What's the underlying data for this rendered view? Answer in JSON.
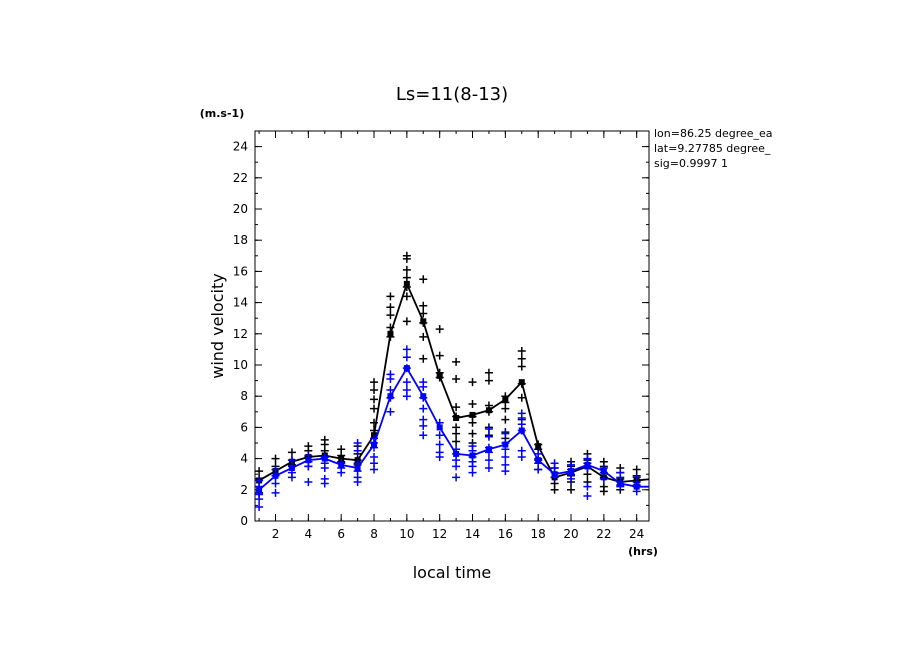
{
  "chart_data": {
    "type": "line",
    "title": "Ls=11(8-13)",
    "xlabel": "local time",
    "ylabel": "wind velocity",
    "x_unit": "(hrs)",
    "y_unit": "(m.s-1)",
    "xlim": [
      0.75,
      24.75
    ],
    "ylim": [
      0,
      25
    ],
    "xticks": [
      2,
      4,
      6,
      8,
      10,
      12,
      14,
      16,
      18,
      20,
      22,
      24
    ],
    "yticks": [
      0,
      2,
      4,
      6,
      8,
      10,
      12,
      14,
      16,
      18,
      20,
      22,
      24
    ],
    "info_lines": [
      "lon=86.25 degree_ea",
      "lat=9.27785 degree_",
      "sig=0.9997 1"
    ],
    "x": [
      1,
      2,
      3,
      4,
      5,
      6,
      7,
      8,
      9,
      10,
      11,
      12,
      13,
      14,
      15,
      16,
      17,
      18,
      19,
      20,
      21,
      22,
      23,
      24,
      25
    ],
    "series": [
      {
        "color": "#000000",
        "values": [
          2.6,
          3.2,
          3.8,
          4.1,
          4.2,
          4.0,
          3.9,
          5.5,
          12.0,
          15.2,
          12.8,
          9.3,
          6.6,
          6.8,
          7.1,
          7.8,
          8.9,
          4.8,
          2.8,
          3.1,
          3.5,
          2.8,
          2.5,
          2.6,
          2.7
        ],
        "scatter": [
          [
            3.2,
            2.7,
            2.2,
            1.8
          ],
          [
            4.0,
            3.5,
            2.9
          ],
          [
            4.4,
            3.9,
            3.6
          ],
          [
            4.8,
            4.5,
            4.1,
            3.8,
            3.5
          ],
          [
            5.2,
            4.9,
            4.5,
            4.1
          ],
          [
            4.6,
            4.2,
            3.8
          ],
          [
            4.8,
            4.3,
            3.9,
            3.6
          ],
          [
            8.9,
            8.4,
            7.8,
            7.2,
            6.3,
            5.8
          ],
          [
            14.4,
            13.7,
            13.2,
            12.4,
            11.8
          ],
          [
            17.0,
            16.8,
            16.1,
            15.6,
            15.0,
            14.4,
            12.8
          ],
          [
            15.5,
            13.8,
            13.3,
            12.7,
            11.8,
            10.4
          ],
          [
            12.3,
            10.6,
            9.5,
            9.2
          ],
          [
            10.2,
            9.1,
            7.3,
            6.7,
            6.0,
            5.6,
            5.1
          ],
          [
            8.9,
            7.5,
            6.7,
            6.3,
            5.6,
            5.0
          ],
          [
            9.5,
            9.0,
            7.4,
            7.0,
            6.0,
            5.5
          ],
          [
            8.0,
            7.6,
            7.2,
            6.5,
            5.7,
            5.3
          ],
          [
            10.9,
            10.4,
            9.9,
            8.8,
            7.9,
            6.5
          ],
          [
            4.9,
            4.6,
            3.9,
            3.3
          ],
          [
            3.4,
            2.8,
            2.4,
            2.0
          ],
          [
            3.8,
            3.5,
            2.9,
            2.5,
            2.0
          ],
          [
            4.3,
            3.9,
            3.4,
            3.0,
            2.5
          ],
          [
            3.8,
            3.5,
            2.8,
            2.2,
            1.9
          ],
          [
            3.4,
            3.1,
            2.7,
            2.3,
            2.0
          ],
          [
            3.3,
            2.9,
            2.6,
            2.3
          ],
          [
            3.3,
            2.9,
            2.6,
            2.3
          ]
        ]
      },
      {
        "color": "#0000ff",
        "values": [
          2.0,
          2.9,
          3.4,
          3.9,
          4.0,
          3.6,
          3.4,
          4.9,
          8.0,
          9.8,
          8.0,
          6.0,
          4.3,
          4.2,
          4.6,
          4.9,
          5.8,
          3.9,
          3.0,
          3.2,
          3.6,
          3.2,
          2.4,
          2.2,
          2.2
        ],
        "scatter": [
          [
            2.6,
            2.2,
            1.7,
            1.4,
            0.9
          ],
          [
            3.3,
            2.9,
            2.4,
            1.8
          ],
          [
            3.9,
            3.5,
            3.1,
            2.8
          ],
          [
            4.2,
            3.8,
            3.5,
            2.5
          ],
          [
            4.1,
            3.7,
            3.4,
            2.7,
            2.4
          ],
          [
            3.7,
            3.4,
            3.1
          ],
          [
            5.0,
            4.5,
            3.7,
            3.2,
            2.8,
            2.5
          ],
          [
            5.3,
            5.0,
            4.7,
            4.1,
            3.7,
            3.3
          ],
          [
            9.4,
            9.1,
            8.4,
            7.9,
            7.0
          ],
          [
            11.0,
            10.5,
            9.8,
            8.9,
            8.4,
            8.0
          ],
          [
            8.9,
            8.6,
            7.9,
            7.2,
            6.5,
            6.1,
            5.5
          ],
          [
            6.3,
            5.5,
            4.9,
            4.4,
            4.1
          ],
          [
            4.6,
            4.3,
            3.9,
            3.5,
            2.8
          ],
          [
            4.8,
            4.5,
            4.1,
            3.8,
            3.5,
            3.1
          ],
          [
            5.9,
            5.4,
            4.7,
            4.4,
            3.9,
            3.4
          ],
          [
            5.6,
            5.0,
            4.6,
            4.1,
            3.6,
            3.2
          ],
          [
            6.9,
            6.6,
            6.2,
            5.8,
            4.5,
            4.1
          ],
          [
            4.3,
            4.0,
            3.7,
            3.3
          ],
          [
            3.7,
            3.4,
            3.1,
            2.8
          ],
          [
            3.6,
            3.3,
            3.0,
            2.7
          ],
          [
            4.0,
            3.7,
            3.4,
            2.2,
            1.6
          ],
          [
            3.4,
            3.1,
            2.7
          ],
          [
            3.1,
            2.8,
            2.5,
            2.2
          ],
          [
            2.8,
            2.5,
            2.2,
            1.9
          ],
          [
            2.6,
            2.3,
            2.0,
            1.7
          ]
        ]
      }
    ]
  }
}
